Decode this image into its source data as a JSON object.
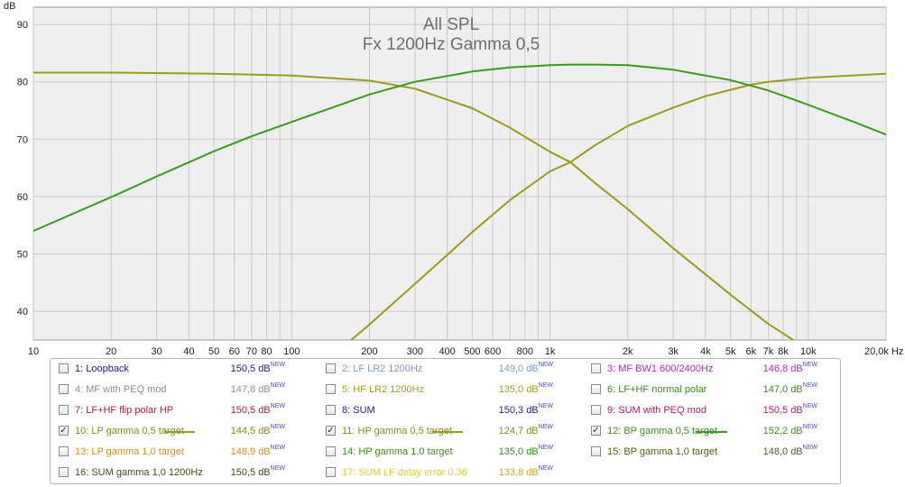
{
  "chart_data": {
    "type": "line",
    "title": "All SPL",
    "subtitle": "Fx 1200Hz Gamma 0,5",
    "ylabel": "dB",
    "xscale": "log",
    "xlim": [
      10,
      20000
    ],
    "ylim": [
      35,
      93
    ],
    "x_ticks": [
      {
        "v": 10,
        "t": "10"
      },
      {
        "v": 20,
        "t": "20"
      },
      {
        "v": 30,
        "t": "30"
      },
      {
        "v": 40,
        "t": "40"
      },
      {
        "v": 50,
        "t": "50"
      },
      {
        "v": 60,
        "t": "60"
      },
      {
        "v": 70,
        "t": "70"
      },
      {
        "v": 80,
        "t": "80"
      },
      {
        "v": 100,
        "t": "100"
      },
      {
        "v": 200,
        "t": "200"
      },
      {
        "v": 300,
        "t": "300"
      },
      {
        "v": 400,
        "t": "400"
      },
      {
        "v": 500,
        "t": "500"
      },
      {
        "v": 600,
        "t": "600"
      },
      {
        "v": 800,
        "t": "800"
      },
      {
        "v": 1000,
        "t": "1k"
      },
      {
        "v": 2000,
        "t": "2k"
      },
      {
        "v": 3000,
        "t": "3k"
      },
      {
        "v": 4000,
        "t": "4k"
      },
      {
        "v": 5000,
        "t": "5k"
      },
      {
        "v": 6000,
        "t": "6k"
      },
      {
        "v": 7000,
        "t": "7k"
      },
      {
        "v": 8000,
        "t": "8k"
      },
      {
        "v": 10000,
        "t": "10k"
      },
      {
        "v": 20000,
        "t": "20,0k Hz"
      }
    ],
    "x_gridlines": [
      10,
      20,
      30,
      40,
      50,
      60,
      70,
      80,
      90,
      100,
      200,
      300,
      400,
      500,
      600,
      700,
      800,
      900,
      1000,
      2000,
      3000,
      4000,
      5000,
      6000,
      7000,
      8000,
      9000,
      10000,
      20000
    ],
    "y_ticks": [
      40,
      50,
      60,
      70,
      80,
      90
    ],
    "grid": true,
    "series": [
      {
        "name": "10: LP gamma 0,5 target",
        "color": "#9b9b1e",
        "x": [
          10,
          20,
          50,
          100,
          200,
          300,
          500,
          700,
          1000,
          1200,
          1500,
          2000,
          3000,
          5000,
          7000,
          8750
        ],
        "y": [
          81.6,
          81.6,
          81.4,
          81.1,
          80.2,
          78.8,
          75.4,
          72.0,
          67.8,
          66.0,
          62.3,
          57.8,
          51.0,
          42.9,
          37.8,
          35.0
        ]
      },
      {
        "name": "11: HP gamma 0,5 target",
        "color": "#9b9b1e",
        "x": [
          170,
          200,
          300,
          400,
          500,
          700,
          1000,
          1200,
          1500,
          2000,
          3000,
          4000,
          5000,
          6000,
          7000,
          10000,
          20000
        ],
        "y": [
          35.0,
          37.7,
          44.8,
          49.8,
          53.8,
          59.4,
          64.4,
          66.0,
          69.0,
          72.3,
          75.5,
          77.5,
          78.6,
          79.5,
          80.0,
          80.7,
          81.4
        ]
      },
      {
        "name": "12: BP gamma 0,5 target",
        "color": "#3d9a1e",
        "x": [
          10,
          20,
          30,
          50,
          70,
          100,
          200,
          300,
          500,
          700,
          1000,
          1200,
          1500,
          2000,
          3000,
          5000,
          7000,
          10000,
          15000,
          20000
        ],
        "y": [
          54.0,
          59.9,
          63.5,
          67.9,
          70.5,
          73.0,
          77.8,
          80.0,
          81.8,
          82.5,
          82.9,
          83.0,
          83.0,
          82.9,
          82.1,
          80.3,
          78.5,
          76.0,
          73.0,
          70.8
        ]
      }
    ]
  },
  "legend": {
    "rows": [
      [
        {
          "checked": false,
          "label": "1: Loopback",
          "label_color": "#22228a",
          "value": "150,5 dB",
          "sup": "NEW",
          "value_color": "#22228a"
        },
        {
          "checked": false,
          "label": "2: LF LR2 1200Hz",
          "label_color": "#7a9ad4",
          "value": "149,0 dB",
          "sup": "NEW",
          "value_color": "#7a9ad4"
        },
        {
          "checked": false,
          "label": "3: MF BW1 600/2400Hz",
          "label_color": "#b428b4",
          "value": "146,8 dB",
          "sup": "NEW",
          "value_color": "#b428b4"
        }
      ],
      [
        {
          "checked": false,
          "label": "4: MF with PEQ mod",
          "label_color": "#8e8e8e",
          "value": "147,8 dB",
          "sup": "NEW",
          "value_color": "#8e8e8e"
        },
        {
          "checked": false,
          "label": "5: HF LR2 1200Hz",
          "label_color": "#a0a020",
          "value": "135,0 dB",
          "sup": "NEW",
          "value_color": "#a0a020"
        },
        {
          "checked": false,
          "label": "6: LF+HF normal polar",
          "label_color": "#3c8c1e",
          "value": "147,0 dB",
          "sup": "NEW",
          "value_color": "#3c8c1e"
        }
      ],
      [
        {
          "checked": false,
          "label": "7: LF+HF flip polar HP",
          "label_color": "#aa1e3c",
          "value": "150,5 dB",
          "sup": "NEW",
          "value_color": "#aa1e3c"
        },
        {
          "checked": false,
          "label": "8: SUM",
          "label_color": "#22228a",
          "value": "150,3 dB",
          "sup": "NEW",
          "value_color": "#22228a"
        },
        {
          "checked": false,
          "label": "9: SUM with PEQ mod",
          "label_color": "#b4146e",
          "value": "150,5 dB",
          "sup": "NEW",
          "value_color": "#b4146e"
        }
      ],
      [
        {
          "checked": true,
          "label": "10: LP gamma 0,5 target",
          "label_color": "#8a8a1e",
          "value": "144,5 dB",
          "sup": "NEW",
          "value_color": "#8a8a1e",
          "swatch": "#9b9b1e"
        },
        {
          "checked": true,
          "label": "11: HP gamma 0,5 target",
          "label_color": "#8a8a1e",
          "value": "124,7 dB",
          "sup": "NEW",
          "value_color": "#8a8a1e",
          "swatch": "#9b9b1e"
        },
        {
          "checked": true,
          "label": "12: BP gamma 0,5 target",
          "label_color": "#3c8c1e",
          "value": "152,2 dB",
          "sup": "NEW",
          "value_color": "#3c8c1e",
          "swatch": "#3d9a1e"
        }
      ],
      [
        {
          "checked": false,
          "label": "13: LP gamma 1,0 target",
          "label_color": "#d88c1e",
          "value": "148,9 dB",
          "sup": "NEW",
          "value_color": "#d88c1e"
        },
        {
          "checked": false,
          "label": "14: HP gamma 1,0 target",
          "label_color": "#3c8c1e",
          "value": "135,0 dB",
          "sup": "NEW",
          "value_color": "#3c8c1e"
        },
        {
          "checked": false,
          "label": "15: BP gamma 1,0 target",
          "label_color": "#5a5a1e",
          "value": "148,0 dB",
          "sup": "NEW",
          "value_color": "#5a5a1e"
        }
      ],
      [
        {
          "checked": false,
          "label": "16: SUM gamma 1,0 1200Hz",
          "label_color": "#4a4a1e",
          "value": "150,5 dB",
          "sup": "NEW",
          "value_color": "#4a4a1e"
        },
        {
          "checked": false,
          "label": "17: SUM LF delay error 0,36",
          "label_color": "#e8c828",
          "value": "133,8 dB",
          "sup": "NEW",
          "value_color": "#c8a81e"
        }
      ]
    ]
  }
}
